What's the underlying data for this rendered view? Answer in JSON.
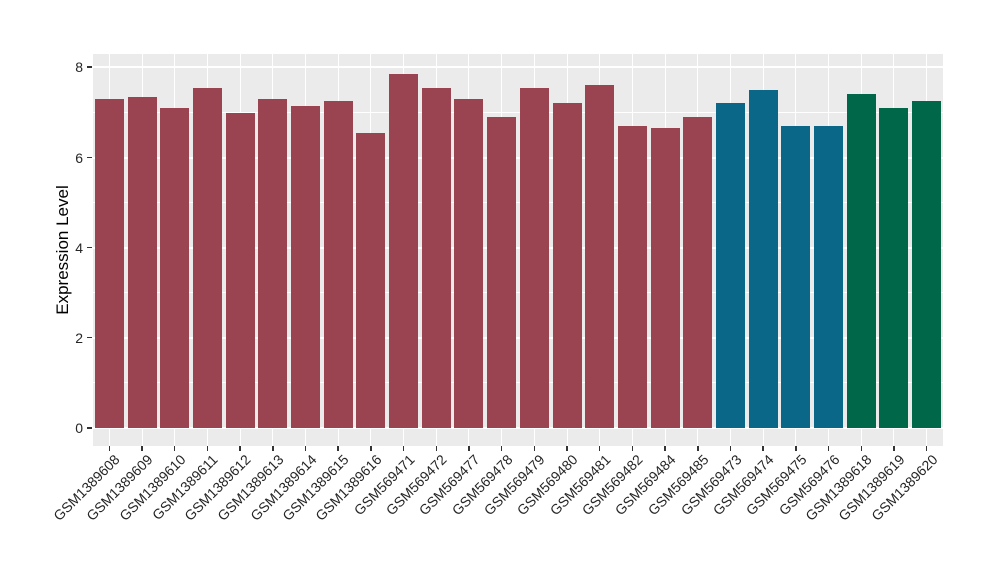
{
  "chart_data": {
    "type": "bar",
    "title": "",
    "xlabel": "",
    "ylabel": "Expression Level",
    "ylim": [
      0,
      8.3
    ],
    "yticks": [
      0,
      2,
      4,
      6,
      8
    ],
    "minor_gridlines": [
      1,
      3,
      5,
      7
    ],
    "grid": "major and minor horizontal white gridlines plus vertical white gridlines at category centers on gray panel",
    "legend_position": "none",
    "panel_bg": "#EBEBEB",
    "grid_color": "#FFFFFF",
    "palette": {
      "maroon": "#9A4452",
      "teal": "#0A6787",
      "green": "#006749"
    },
    "categories": [
      "GSM1389608",
      "GSM1389609",
      "GSM1389610",
      "GSM1389611",
      "GSM1389612",
      "GSM1389613",
      "GSM1389614",
      "GSM1389615",
      "GSM1389616",
      "GSM569471",
      "GSM569472",
      "GSM569477",
      "GSM569478",
      "GSM569479",
      "GSM569480",
      "GSM569481",
      "GSM569482",
      "GSM569484",
      "GSM569485",
      "GSM569473",
      "GSM569474",
      "GSM569475",
      "GSM569476",
      "GSM1389618",
      "GSM1389619",
      "GSM1389620"
    ],
    "values": [
      7.3,
      7.35,
      7.1,
      7.55,
      7.0,
      7.3,
      7.15,
      7.25,
      6.55,
      7.85,
      7.55,
      7.3,
      6.9,
      7.55,
      7.2,
      7.6,
      6.7,
      6.65,
      6.9,
      7.2,
      7.5,
      6.7,
      6.7,
      7.4,
      7.1,
      7.25
    ],
    "bar_colors": [
      "#9A4452",
      "#9A4452",
      "#9A4452",
      "#9A4452",
      "#9A4452",
      "#9A4452",
      "#9A4452",
      "#9A4452",
      "#9A4452",
      "#9A4452",
      "#9A4452",
      "#9A4452",
      "#9A4452",
      "#9A4452",
      "#9A4452",
      "#9A4452",
      "#9A4452",
      "#9A4452",
      "#9A4452",
      "#0A6787",
      "#0A6787",
      "#0A6787",
      "#0A6787",
      "#006749",
      "#006749",
      "#006749"
    ]
  }
}
